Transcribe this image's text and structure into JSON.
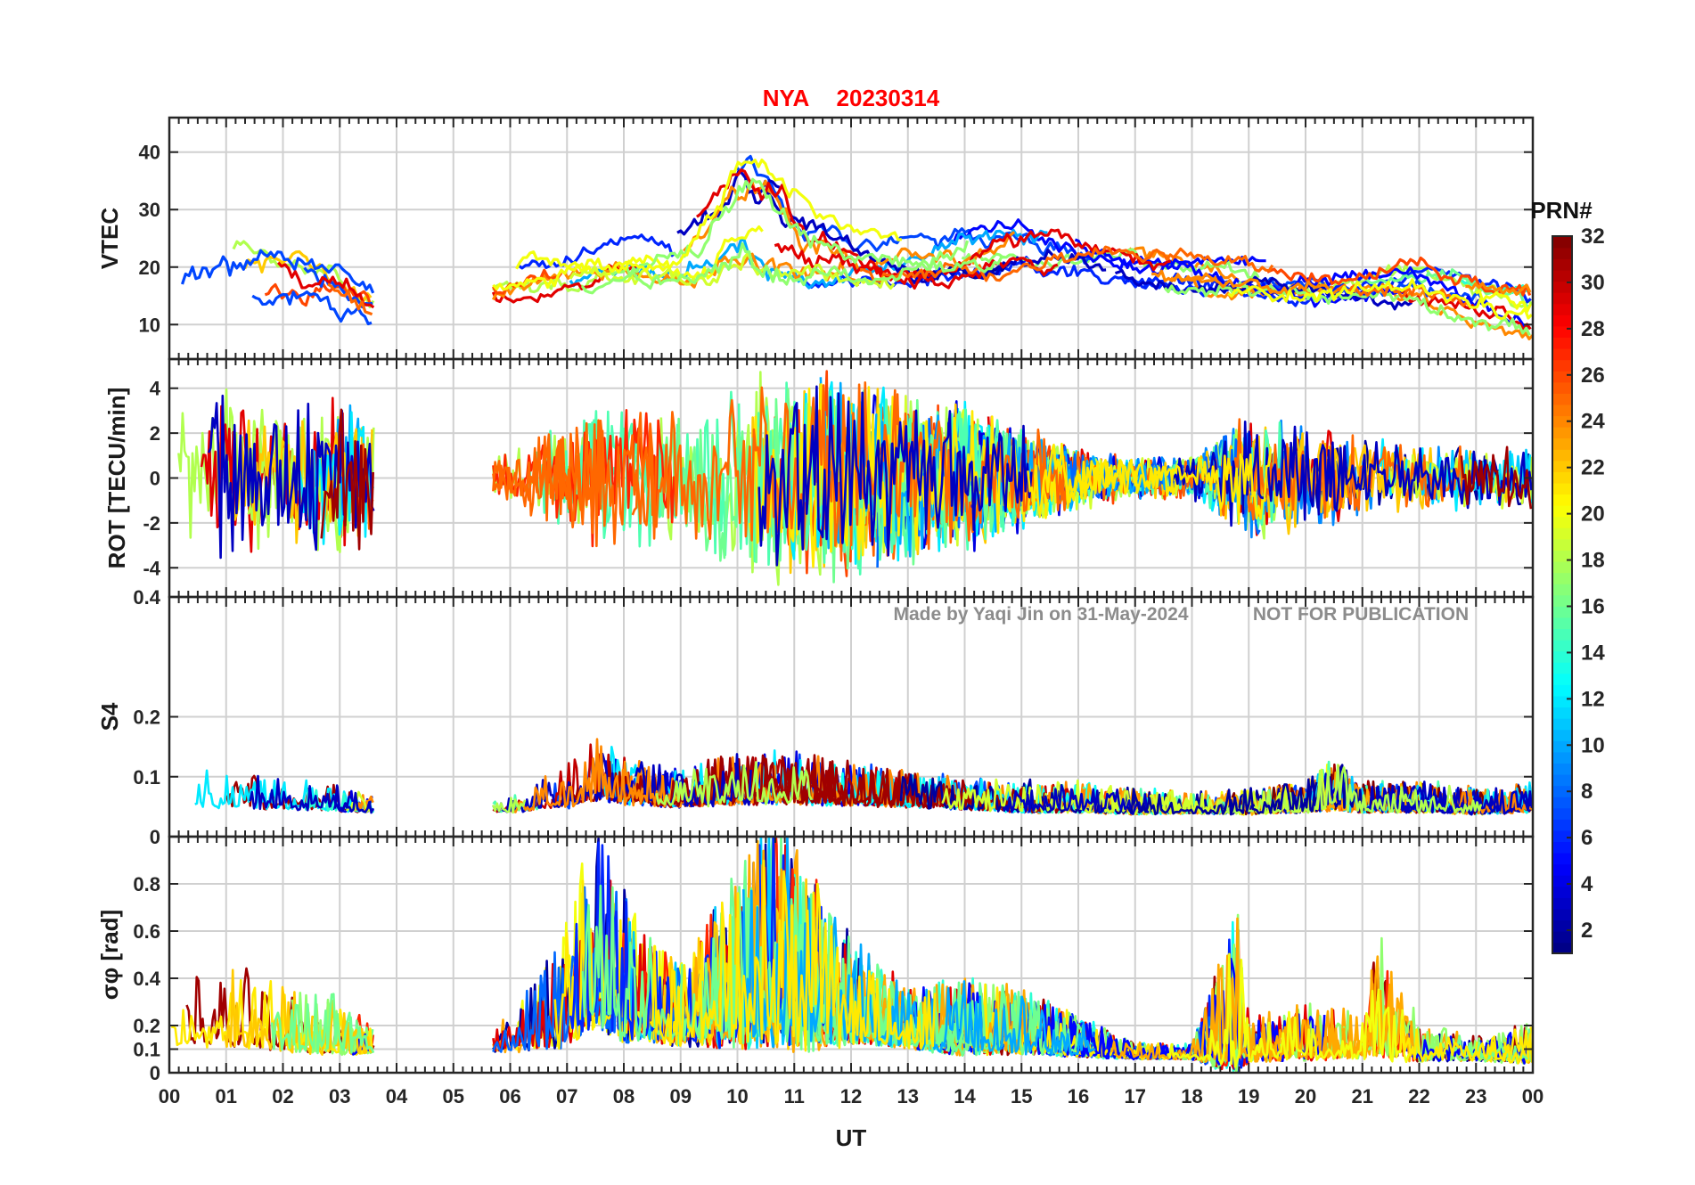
{
  "figure": {
    "title_station": "NYA",
    "title_date": "20230314",
    "title_color": "#ff0000",
    "watermark_author": "Made by Yaqi Jin on 31-May-2024",
    "watermark_notice": "NOT FOR PUBLICATION",
    "watermark_color": "#808080"
  },
  "chart_data": [
    {
      "type": "line",
      "panel": "vtec",
      "ylabel": "VTEC",
      "xlabel": "",
      "xlim": [
        0,
        24
      ],
      "ylim": [
        4,
        46
      ],
      "yticks": [
        10,
        20,
        30,
        40
      ],
      "ytick_labels": [
        "10",
        "20",
        "30",
        "40"
      ],
      "grid": true,
      "series_summary": "Multiple PRN traces colored by PRN number; data gap from ~03.6 to ~05.7 UT",
      "envelope": {
        "x": [
          0,
          0.5,
          1,
          2,
          3,
          3.6,
          5.7,
          6,
          7,
          8,
          9,
          9.5,
          10,
          10.5,
          11,
          12,
          13,
          14,
          15,
          16,
          17,
          18,
          19,
          20,
          21,
          22,
          23,
          24
        ],
        "mid": [
          18,
          19,
          18,
          17,
          15,
          13,
          17,
          18,
          20,
          21,
          21,
          24,
          30,
          28,
          25,
          22,
          21,
          22,
          23,
          22,
          21,
          19,
          18,
          17,
          17,
          17,
          14,
          12
        ],
        "spread": [
          10,
          10,
          9,
          8,
          6,
          5,
          4,
          5,
          6,
          5,
          6,
          9,
          12,
          12,
          10,
          6,
          5,
          6,
          6,
          5,
          5,
          4,
          4,
          4,
          4,
          5,
          5,
          5
        ]
      }
    },
    {
      "type": "line",
      "panel": "rot",
      "ylabel": "ROT [TECU/min]",
      "xlabel": "",
      "xlim": [
        0,
        24
      ],
      "ylim": [
        -5.3,
        5.3
      ],
      "yticks": [
        -4,
        -2,
        0,
        2,
        4
      ],
      "ytick_labels": [
        "-4",
        "-2",
        "0",
        "2",
        "4"
      ],
      "grid": true,
      "series_summary": "Rate of TEC per PRN, oscillating about 0; strongest activity 07-14 UT",
      "envelope": {
        "x": [
          0,
          1,
          2,
          3,
          3.6,
          5.7,
          6,
          7,
          8,
          9,
          10,
          11,
          12,
          13,
          14,
          15,
          16,
          17,
          18,
          19,
          20,
          21,
          22,
          23,
          24
        ],
        "mid": [
          0,
          0,
          0,
          0,
          0,
          0,
          0,
          0,
          0,
          0,
          0,
          0,
          0,
          0,
          0,
          0,
          0,
          0,
          0,
          0,
          0,
          0,
          0,
          0,
          0
        ],
        "spread": [
          3.5,
          4,
          3,
          4,
          3,
          1,
          1.5,
          3,
          4,
          3,
          5,
          5,
          5,
          4,
          3.5,
          2.5,
          1.5,
          1,
          1,
          3,
          2.5,
          2,
          1.5,
          1.5,
          1.5
        ]
      }
    },
    {
      "type": "line",
      "panel": "s4",
      "ylabel": "S4",
      "xlabel": "",
      "xlim": [
        0,
        24
      ],
      "ylim": [
        0,
        0.4
      ],
      "yticks": [
        0,
        0.1,
        0.2,
        0.4
      ],
      "ytick_labels": [
        "0",
        "0.1",
        "0.2",
        "0.4"
      ],
      "grid": true,
      "series_summary": "Amplitude scintillation index per PRN, mostly 0.03-0.1; peaks ~0.15 near 07-08 UT",
      "envelope": {
        "x": [
          0,
          1,
          2,
          3,
          3.6,
          5.7,
          6,
          7,
          7.5,
          8,
          9,
          10,
          11,
          12,
          13,
          14,
          15,
          16,
          17,
          18,
          19,
          20,
          20.5,
          21,
          22,
          23,
          24
        ],
        "mid": [
          0.06,
          0.06,
          0.055,
          0.05,
          0.045,
          0.045,
          0.045,
          0.06,
          0.08,
          0.07,
          0.06,
          0.07,
          0.07,
          0.065,
          0.06,
          0.055,
          0.05,
          0.05,
          0.045,
          0.045,
          0.045,
          0.05,
          0.06,
          0.05,
          0.05,
          0.045,
          0.05
        ],
        "spread": [
          0.04,
          0.04,
          0.03,
          0.025,
          0.015,
          0.01,
          0.015,
          0.04,
          0.06,
          0.05,
          0.035,
          0.05,
          0.05,
          0.04,
          0.035,
          0.03,
          0.03,
          0.03,
          0.025,
          0.02,
          0.025,
          0.03,
          0.05,
          0.03,
          0.03,
          0.025,
          0.03
        ]
      }
    },
    {
      "type": "line",
      "panel": "sigma_phi",
      "ylabel": "σφ [rad]",
      "xlabel": "UT",
      "xlim": [
        0,
        24
      ],
      "ylim": [
        0,
        1.0
      ],
      "yticks": [
        0,
        0.1,
        0.2,
        0.4,
        0.6,
        0.8
      ],
      "ytick_labels": [
        "0",
        "0.1",
        "0.2",
        "0.4",
        "0.6",
        "0.8"
      ],
      "xticks": [
        0,
        1,
        2,
        3,
        4,
        5,
        6,
        7,
        8,
        9,
        10,
        11,
        12,
        13,
        14,
        15,
        16,
        17,
        18,
        19,
        20,
        21,
        22,
        23,
        24
      ],
      "xtick_labels": [
        "00",
        "01",
        "02",
        "03",
        "04",
        "05",
        "06",
        "07",
        "08",
        "09",
        "10",
        "11",
        "12",
        "13",
        "14",
        "15",
        "16",
        "17",
        "18",
        "19",
        "20",
        "21",
        "22",
        "23",
        "00"
      ],
      "grid": true,
      "series_summary": "Phase scintillation index per PRN; spikes to ~0.9-1.0 near 07.5 and 10-11 UT",
      "envelope": {
        "x": [
          0,
          1,
          2,
          3,
          3.6,
          5.7,
          6,
          7,
          7.5,
          8,
          9,
          10,
          10.5,
          11,
          12,
          13,
          14,
          15,
          16,
          17,
          18,
          18.8,
          19,
          20,
          21,
          21.3,
          22,
          23,
          24
        ],
        "mid": [
          0.15,
          0.18,
          0.14,
          0.12,
          0.1,
          0.1,
          0.12,
          0.2,
          0.35,
          0.25,
          0.18,
          0.25,
          0.3,
          0.25,
          0.2,
          0.15,
          0.14,
          0.13,
          0.1,
          0.07,
          0.07,
          0.12,
          0.08,
          0.1,
          0.1,
          0.15,
          0.08,
          0.07,
          0.07
        ],
        "spread": [
          0.15,
          0.2,
          0.15,
          0.15,
          0.06,
          0.05,
          0.1,
          0.3,
          0.5,
          0.35,
          0.2,
          0.45,
          0.55,
          0.5,
          0.25,
          0.15,
          0.2,
          0.15,
          0.1,
          0.04,
          0.04,
          0.4,
          0.1,
          0.15,
          0.12,
          0.3,
          0.1,
          0.06,
          0.1
        ]
      }
    }
  ],
  "colorbar": {
    "label": "PRN#",
    "range": [
      1,
      32
    ],
    "ticks": [
      2,
      4,
      6,
      8,
      10,
      12,
      14,
      16,
      18,
      20,
      22,
      24,
      26,
      28,
      30,
      32
    ],
    "tick_labels": [
      "2",
      "4",
      "6",
      "8",
      "10",
      "12",
      "14",
      "16",
      "18",
      "20",
      "22",
      "24",
      "26",
      "28",
      "30",
      "32"
    ],
    "colormap": "jet"
  }
}
